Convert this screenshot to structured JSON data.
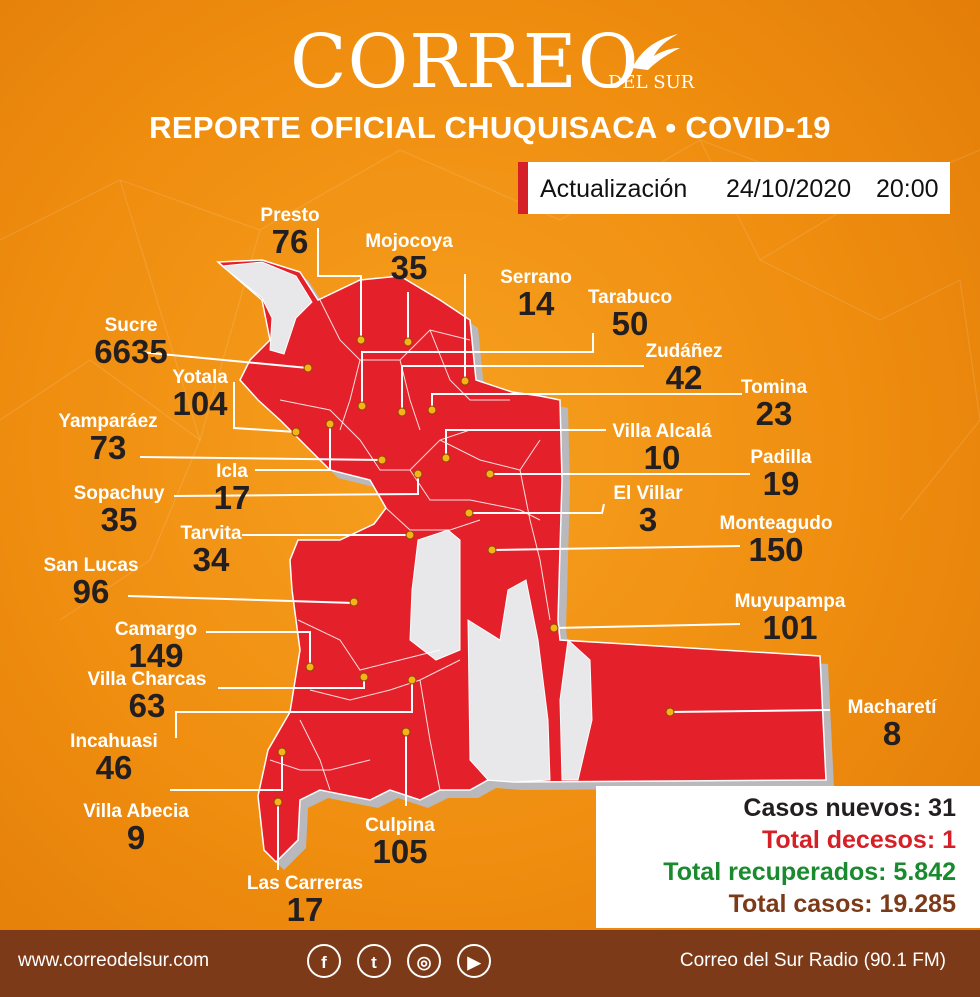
{
  "brand": {
    "name": "CORREO",
    "sub": "DEL SUR"
  },
  "headline": "REPORTE OFICIAL CHUQUISACA • COVID-19",
  "update": {
    "label": "Actualización",
    "date": "24/10/2020",
    "time": "20:00"
  },
  "municipalities": [
    {
      "name": "Presto",
      "cases": "76"
    },
    {
      "name": "Mojocoya",
      "cases": "35"
    },
    {
      "name": "Serrano",
      "cases": "14"
    },
    {
      "name": "Tarabuco",
      "cases": "50"
    },
    {
      "name": "Sucre",
      "cases": "6635"
    },
    {
      "name": "Zudáñez",
      "cases": "42"
    },
    {
      "name": "Yotala",
      "cases": "104"
    },
    {
      "name": "Tomina",
      "cases": "23"
    },
    {
      "name": "Yamparáez",
      "cases": "73"
    },
    {
      "name": "Villa Alcalá",
      "cases": "10"
    },
    {
      "name": "Padilla",
      "cases": "19"
    },
    {
      "name": "Icla",
      "cases": "17"
    },
    {
      "name": "Sopachuy",
      "cases": "35"
    },
    {
      "name": "El Villar",
      "cases": "3"
    },
    {
      "name": "Monteagudo",
      "cases": "150"
    },
    {
      "name": "Tarvita",
      "cases": "34"
    },
    {
      "name": "San Lucas",
      "cases": "96"
    },
    {
      "name": "Muyupampa",
      "cases": "101"
    },
    {
      "name": "Camargo",
      "cases": "149"
    },
    {
      "name": "Villa Charcas",
      "cases": "63"
    },
    {
      "name": "Macharetí",
      "cases": "8"
    },
    {
      "name": "Incahuasi",
      "cases": "46"
    },
    {
      "name": "Villa Abecia",
      "cases": "9"
    },
    {
      "name": "Culpina",
      "cases": "105"
    },
    {
      "name": "Las Carreras",
      "cases": "17"
    }
  ],
  "stats": [
    {
      "label": "Casos nuevos: 31",
      "color": "#231f20"
    },
    {
      "label": "Total decesos: 1",
      "color": "#d62027"
    },
    {
      "label": "Total recuperados: 5.842",
      "color": "#1a8a2e"
    },
    {
      "label": "Total casos: 19.285",
      "color": "#7d3a18"
    }
  ],
  "footer": {
    "website": "www.correodelsur.com",
    "radio": "Correo del Sur Radio (90.1 FM)",
    "social": [
      {
        "icon": "facebook-icon",
        "glyph": "f"
      },
      {
        "icon": "twitter-icon",
        "glyph": "t"
      },
      {
        "icon": "instagram-icon",
        "glyph": "◎"
      },
      {
        "icon": "youtube-icon",
        "glyph": "▶"
      }
    ]
  },
  "colors": {
    "region": "#e4212b",
    "gap": "#e8e8ea",
    "accent": "#d62027"
  }
}
